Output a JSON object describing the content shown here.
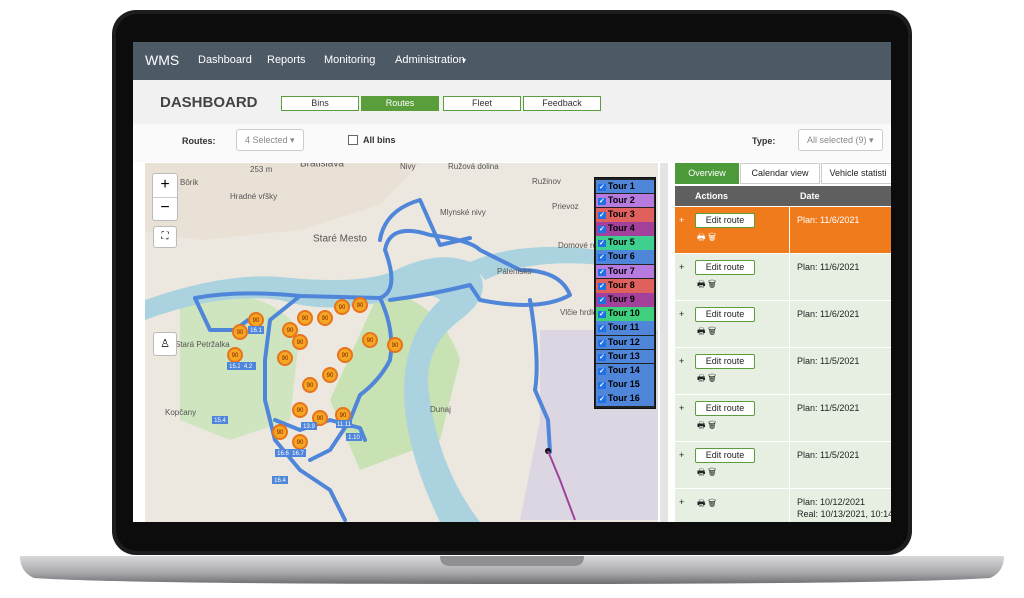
{
  "nav": {
    "brand": "WMS",
    "items": [
      "Dashboard",
      "Reports",
      "Monitoring",
      "Administration"
    ]
  },
  "header": {
    "title": "DASHBOARD",
    "tabs": [
      "Bins",
      "Routes",
      "Fleet",
      "Feedback"
    ],
    "active_tab": 1
  },
  "filters": {
    "routes_label": "Routes:",
    "routes_value": "4 Selected",
    "all_bins": "All bins",
    "type_label": "Type:",
    "type_value": "All selected (9)"
  },
  "map": {
    "zoom_in": "+",
    "zoom_out": "−",
    "places": [
      "253 m",
      "Bratislava",
      "Nivy",
      "Ružová dolina",
      "Bôrik",
      "Hradné vŕšky",
      "Ružinov",
      "Mlynské nivy",
      "Prievoz",
      "Staré Mesto",
      "Domové role",
      "Pálenisko",
      "Vlčie hrdlo",
      "Stará Petržalka",
      "Kopčany",
      "Dunaj"
    ],
    "bins": [
      "90",
      "90",
      "90",
      "90",
      "90",
      "90",
      "90",
      "90",
      "90",
      "90",
      "90",
      "90",
      "90",
      "90",
      "90",
      "90",
      "90",
      "90",
      "90",
      "90"
    ],
    "tags": [
      "16.1",
      "15.2",
      "4.2",
      "15.4",
      "13.9",
      "16.7",
      "16.4",
      "1.10",
      "11.11",
      "16.6"
    ],
    "tours": [
      {
        "name": "Tour 1",
        "color": "#4f86d9"
      },
      {
        "name": "Tour 2",
        "color": "#b77be0"
      },
      {
        "name": "Tour 3",
        "color": "#e0605e"
      },
      {
        "name": "Tour 4",
        "color": "#a2409c"
      },
      {
        "name": "Tour 5",
        "color": "#3fd08f"
      },
      {
        "name": "Tour 6",
        "color": "#4f86d9"
      },
      {
        "name": "Tour 7",
        "color": "#b77be0"
      },
      {
        "name": "Tour 8",
        "color": "#e0605e"
      },
      {
        "name": "Tour 9",
        "color": "#a2409c"
      },
      {
        "name": "Tour 10",
        "color": "#3fd07d"
      },
      {
        "name": "Tour 11",
        "color": "#4f86d9"
      },
      {
        "name": "Tour 12",
        "color": "#4f86d9"
      },
      {
        "name": "Tour 13",
        "color": "#4f86d9"
      },
      {
        "name": "Tour 14",
        "color": "#4f86d9"
      },
      {
        "name": "Tour 15",
        "color": "#4f86d9"
      },
      {
        "name": "Tour 16",
        "color": "#4f86d9"
      }
    ]
  },
  "panel": {
    "tabs": [
      "Overview",
      "Calendar view",
      "Vehicle statisti"
    ],
    "active_tab": 0,
    "columns": [
      "Actions",
      "Date"
    ],
    "highlighted_row": 0,
    "rows": [
      {
        "expand": "+",
        "button": "Edit route",
        "date": "Plan: 11/6/2021"
      },
      {
        "expand": "+",
        "button": "Edit route",
        "date": "Plan: 11/6/2021"
      },
      {
        "expand": "+",
        "button": "Edit route",
        "date": "Plan: 11/6/2021"
      },
      {
        "expand": "+",
        "button": "Edit route",
        "date": "Plan: 11/5/2021"
      },
      {
        "expand": "+",
        "button": "Edit route",
        "date": "Plan: 11/5/2021"
      },
      {
        "expand": "+",
        "button": "Edit route",
        "date": "Plan: 11/5/2021"
      },
      {
        "expand": "+",
        "date": "Plan: 10/12/2021",
        "real": "Real: 10/13/2021, 10:14"
      }
    ]
  }
}
